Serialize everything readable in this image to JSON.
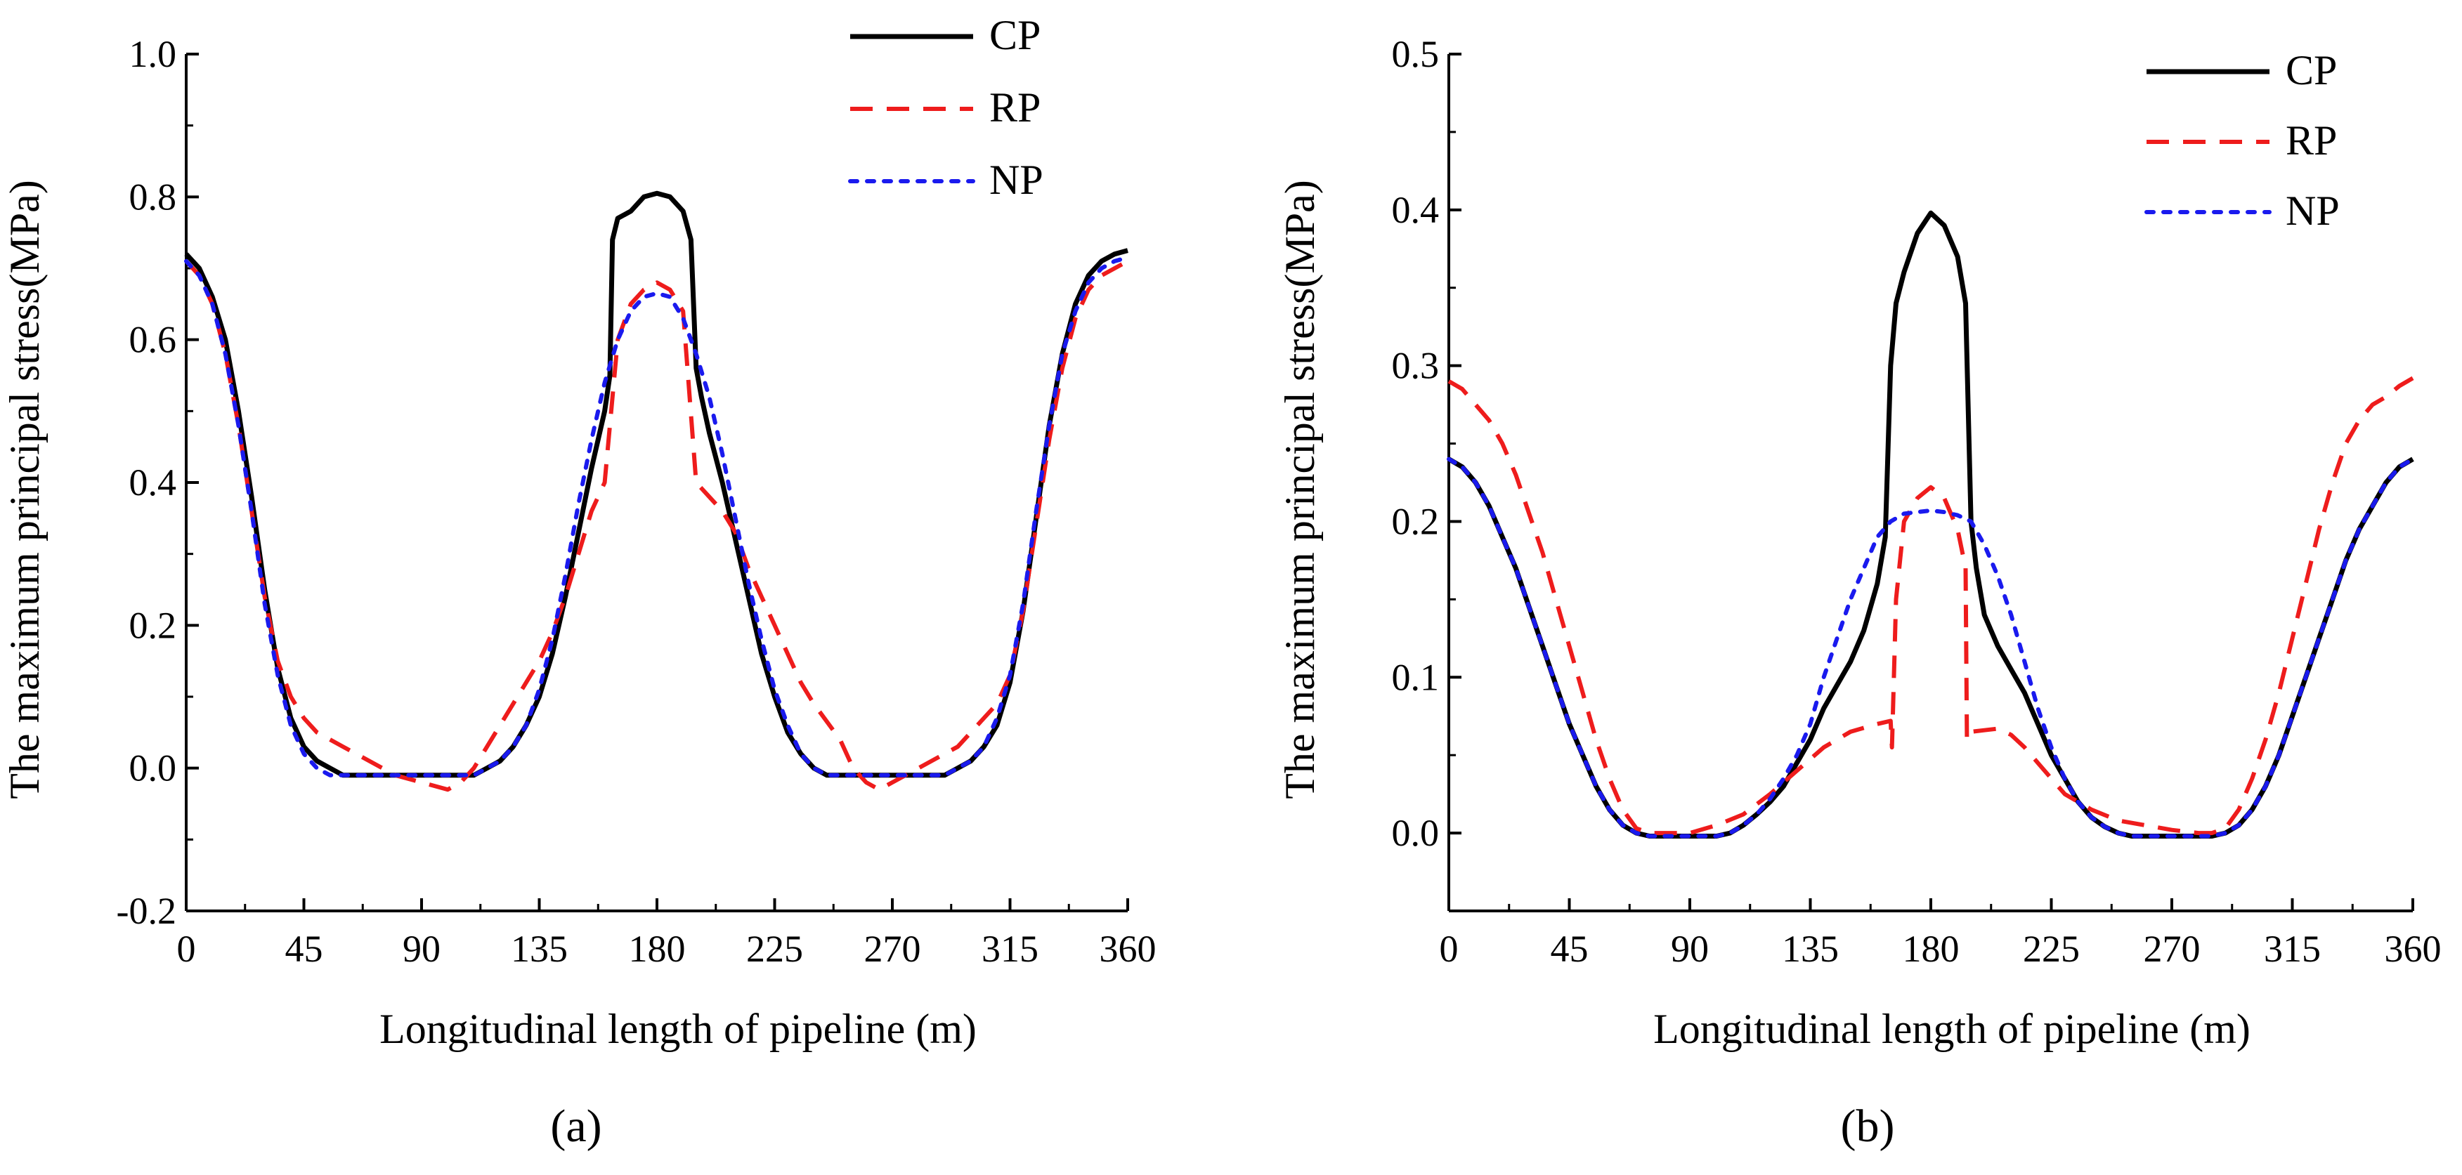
{
  "chart_data": [
    {
      "type": "line",
      "panel_label": "(a)",
      "xlabel": "Longitudinal length of pipeline (m)",
      "ylabel": "The maximum principal stress(MPa)",
      "xlim": [
        0,
        360
      ],
      "ylim": [
        -0.2,
        1.0
      ],
      "xticks": [
        0,
        45,
        90,
        135,
        180,
        225,
        270,
        315,
        360
      ],
      "yticks": [
        -0.2,
        0.0,
        0.2,
        0.4,
        0.6,
        0.8,
        1.0
      ],
      "xtick_labels": [
        "0",
        "45",
        "90",
        "135",
        "180",
        "225",
        "270",
        "315",
        "360"
      ],
      "ytick_labels": [
        "-0.2",
        "0.0",
        "0.2",
        "0.4",
        "0.6",
        "0.8",
        "1.0"
      ],
      "grid": false,
      "legend": "top-right",
      "series": [
        {
          "name": "CP",
          "color": "#000000",
          "style": "solid",
          "x": [
            0,
            5,
            10,
            15,
            20,
            25,
            30,
            35,
            40,
            45,
            50,
            55,
            60,
            70,
            80,
            90,
            100,
            110,
            115,
            120,
            125,
            130,
            135,
            140,
            145,
            150,
            155,
            160,
            162,
            163,
            165,
            170,
            175,
            180,
            185,
            190,
            193,
            195,
            197,
            200,
            205,
            210,
            215,
            220,
            225,
            230,
            235,
            240,
            245,
            250,
            260,
            270,
            280,
            290,
            295,
            300,
            305,
            310,
            315,
            320,
            325,
            330,
            335,
            340,
            345,
            350,
            355,
            360
          ],
          "y": [
            0.72,
            0.7,
            0.66,
            0.6,
            0.5,
            0.38,
            0.25,
            0.14,
            0.07,
            0.03,
            0.01,
            0.0,
            -0.01,
            -0.01,
            -0.01,
            -0.01,
            -0.01,
            -0.01,
            0.0,
            0.01,
            0.03,
            0.06,
            0.1,
            0.16,
            0.24,
            0.33,
            0.42,
            0.5,
            0.55,
            0.74,
            0.77,
            0.78,
            0.8,
            0.805,
            0.8,
            0.78,
            0.74,
            0.56,
            0.52,
            0.47,
            0.4,
            0.32,
            0.24,
            0.16,
            0.1,
            0.05,
            0.02,
            0.0,
            -0.01,
            -0.01,
            -0.01,
            -0.01,
            -0.01,
            -0.01,
            0.0,
            0.01,
            0.03,
            0.06,
            0.12,
            0.22,
            0.35,
            0.48,
            0.58,
            0.65,
            0.69,
            0.71,
            0.72,
            0.725
          ]
        },
        {
          "name": "RP",
          "color": "#ee1c1c",
          "style": "dashed",
          "x": [
            0,
            5,
            10,
            15,
            20,
            25,
            30,
            35,
            40,
            45,
            50,
            55,
            60,
            70,
            80,
            90,
            100,
            105,
            110,
            115,
            120,
            125,
            130,
            135,
            140,
            145,
            150,
            155,
            160,
            165,
            170,
            175,
            180,
            185,
            190,
            195,
            200,
            205,
            210,
            215,
            220,
            225,
            230,
            235,
            240,
            250,
            255,
            260,
            265,
            270,
            280,
            290,
            295,
            300,
            305,
            310,
            315,
            320,
            325,
            330,
            335,
            340,
            345,
            350,
            355,
            360
          ],
          "y": [
            0.71,
            0.69,
            0.65,
            0.58,
            0.48,
            0.36,
            0.24,
            0.15,
            0.1,
            0.07,
            0.05,
            0.04,
            0.03,
            0.01,
            -0.01,
            -0.02,
            -0.03,
            -0.02,
            0.0,
            0.03,
            0.06,
            0.09,
            0.12,
            0.15,
            0.19,
            0.24,
            0.3,
            0.36,
            0.4,
            0.6,
            0.65,
            0.67,
            0.68,
            0.67,
            0.64,
            0.4,
            0.38,
            0.36,
            0.33,
            0.28,
            0.24,
            0.2,
            0.16,
            0.12,
            0.09,
            0.04,
            0.0,
            -0.02,
            -0.03,
            -0.02,
            0.0,
            0.02,
            0.03,
            0.05,
            0.07,
            0.09,
            0.13,
            0.22,
            0.34,
            0.46,
            0.56,
            0.63,
            0.67,
            0.69,
            0.7,
            0.71
          ]
        },
        {
          "name": "NP",
          "color": "#1a1aee",
          "style": "dotted",
          "x": [
            0,
            5,
            10,
            15,
            20,
            25,
            30,
            35,
            40,
            45,
            50,
            55,
            60,
            70,
            80,
            90,
            100,
            110,
            115,
            120,
            125,
            130,
            135,
            140,
            145,
            150,
            155,
            160,
            165,
            170,
            175,
            180,
            185,
            190,
            195,
            200,
            205,
            210,
            215,
            220,
            225,
            230,
            235,
            240,
            245,
            250,
            260,
            270,
            280,
            290,
            295,
            300,
            305,
            310,
            315,
            320,
            325,
            330,
            335,
            340,
            345,
            350,
            355,
            360
          ],
          "y": [
            0.71,
            0.69,
            0.65,
            0.58,
            0.48,
            0.36,
            0.23,
            0.13,
            0.06,
            0.02,
            0.0,
            -0.01,
            -0.01,
            -0.01,
            -0.01,
            -0.01,
            -0.01,
            -0.01,
            0.0,
            0.01,
            0.03,
            0.06,
            0.11,
            0.18,
            0.27,
            0.37,
            0.46,
            0.54,
            0.6,
            0.64,
            0.66,
            0.665,
            0.66,
            0.63,
            0.58,
            0.52,
            0.44,
            0.35,
            0.26,
            0.18,
            0.11,
            0.06,
            0.02,
            0.0,
            -0.01,
            -0.01,
            -0.01,
            -0.01,
            -0.01,
            -0.01,
            0.0,
            0.01,
            0.03,
            0.07,
            0.13,
            0.23,
            0.36,
            0.48,
            0.58,
            0.64,
            0.68,
            0.7,
            0.71,
            0.715
          ]
        }
      ]
    },
    {
      "type": "line",
      "panel_label": "(b)",
      "xlabel": "Longitudinal length of pipeline (m)",
      "ylabel": "The maximum principal stress(MPa)",
      "xlim": [
        0,
        360
      ],
      "ylim": [
        -0.05,
        0.5
      ],
      "xticks": [
        0,
        45,
        90,
        135,
        180,
        225,
        270,
        315,
        360
      ],
      "yticks": [
        0.0,
        0.1,
        0.2,
        0.3,
        0.4,
        0.5
      ],
      "xtick_labels": [
        "0",
        "45",
        "90",
        "135",
        "180",
        "225",
        "270",
        "315",
        "360"
      ],
      "ytick_labels": [
        "0.0",
        "0.1",
        "0.2",
        "0.3",
        "0.4",
        "0.5"
      ],
      "grid": false,
      "legend": "top-right",
      "series": [
        {
          "name": "CP",
          "color": "#000000",
          "style": "solid",
          "x": [
            0,
            5,
            10,
            15,
            20,
            25,
            30,
            35,
            40,
            45,
            50,
            55,
            60,
            65,
            70,
            75,
            80,
            90,
            100,
            105,
            110,
            115,
            120,
            125,
            130,
            135,
            140,
            145,
            150,
            155,
            160,
            163,
            165,
            167,
            170,
            175,
            180,
            185,
            190,
            193,
            195,
            197,
            200,
            205,
            210,
            215,
            220,
            225,
            230,
            235,
            240,
            245,
            250,
            255,
            260,
            270,
            280,
            285,
            290,
            295,
            300,
            305,
            310,
            315,
            320,
            325,
            330,
            335,
            340,
            345,
            350,
            355,
            360
          ],
          "y": [
            0.24,
            0.235,
            0.225,
            0.21,
            0.19,
            0.17,
            0.145,
            0.12,
            0.095,
            0.07,
            0.05,
            0.03,
            0.015,
            0.005,
            0.0,
            -0.002,
            -0.002,
            -0.002,
            -0.002,
            0.0,
            0.005,
            0.012,
            0.02,
            0.03,
            0.045,
            0.06,
            0.08,
            0.095,
            0.11,
            0.13,
            0.16,
            0.19,
            0.3,
            0.34,
            0.36,
            0.385,
            0.398,
            0.39,
            0.37,
            0.34,
            0.2,
            0.17,
            0.14,
            0.12,
            0.105,
            0.09,
            0.07,
            0.05,
            0.035,
            0.02,
            0.01,
            0.004,
            0.0,
            -0.002,
            -0.002,
            -0.002,
            -0.002,
            -0.002,
            0.0,
            0.005,
            0.015,
            0.03,
            0.05,
            0.075,
            0.1,
            0.125,
            0.15,
            0.175,
            0.195,
            0.21,
            0.225,
            0.235,
            0.24
          ]
        },
        {
          "name": "RP",
          "color": "#ee1c1c",
          "style": "dashed",
          "x": [
            0,
            5,
            10,
            15,
            20,
            25,
            30,
            35,
            40,
            45,
            50,
            55,
            60,
            65,
            70,
            75,
            80,
            90,
            100,
            110,
            120,
            130,
            140,
            150,
            160,
            165,
            165.5,
            167,
            170,
            175,
            180,
            185,
            190,
            193,
            193.5,
            195,
            200,
            205,
            210,
            215,
            220,
            230,
            240,
            250,
            260,
            270,
            280,
            285,
            290,
            295,
            300,
            305,
            310,
            315,
            320,
            325,
            330,
            335,
            340,
            345,
            350,
            355,
            360
          ],
          "y": [
            0.29,
            0.285,
            0.275,
            0.265,
            0.25,
            0.23,
            0.205,
            0.18,
            0.15,
            0.12,
            0.09,
            0.06,
            0.035,
            0.015,
            0.003,
            0.0,
            0.0,
            0.0,
            0.005,
            0.012,
            0.025,
            0.04,
            0.055,
            0.065,
            0.07,
            0.072,
            0.055,
            0.15,
            0.2,
            0.215,
            0.222,
            0.215,
            0.195,
            0.17,
            0.06,
            0.065,
            0.066,
            0.067,
            0.063,
            0.055,
            0.045,
            0.025,
            0.015,
            0.008,
            0.005,
            0.002,
            0.0,
            0.0,
            0.003,
            0.015,
            0.035,
            0.06,
            0.09,
            0.125,
            0.16,
            0.195,
            0.225,
            0.25,
            0.265,
            0.275,
            0.28,
            0.287,
            0.292
          ]
        },
        {
          "name": "NP",
          "color": "#1a1aee",
          "style": "dotted",
          "x": [
            0,
            5,
            10,
            15,
            20,
            25,
            30,
            35,
            40,
            45,
            50,
            55,
            60,
            65,
            70,
            75,
            80,
            90,
            100,
            105,
            110,
            115,
            120,
            125,
            130,
            135,
            140,
            145,
            150,
            155,
            160,
            165,
            170,
            175,
            180,
            185,
            190,
            195,
            200,
            205,
            210,
            215,
            220,
            225,
            230,
            235,
            240,
            245,
            250,
            255,
            260,
            270,
            280,
            285,
            290,
            295,
            300,
            305,
            310,
            315,
            320,
            325,
            330,
            335,
            340,
            345,
            350,
            355,
            360
          ],
          "y": [
            0.24,
            0.235,
            0.225,
            0.21,
            0.19,
            0.17,
            0.145,
            0.12,
            0.095,
            0.07,
            0.05,
            0.03,
            0.015,
            0.005,
            0.0,
            -0.002,
            -0.002,
            -0.002,
            -0.002,
            0.0,
            0.005,
            0.012,
            0.022,
            0.035,
            0.05,
            0.07,
            0.1,
            0.125,
            0.15,
            0.17,
            0.19,
            0.2,
            0.205,
            0.206,
            0.207,
            0.206,
            0.204,
            0.2,
            0.185,
            0.165,
            0.14,
            0.11,
            0.08,
            0.055,
            0.035,
            0.02,
            0.01,
            0.004,
            0.0,
            -0.002,
            -0.002,
            -0.002,
            -0.002,
            -0.002,
            0.0,
            0.005,
            0.015,
            0.03,
            0.05,
            0.075,
            0.1,
            0.125,
            0.15,
            0.175,
            0.195,
            0.21,
            0.225,
            0.235,
            0.24
          ]
        }
      ]
    }
  ]
}
